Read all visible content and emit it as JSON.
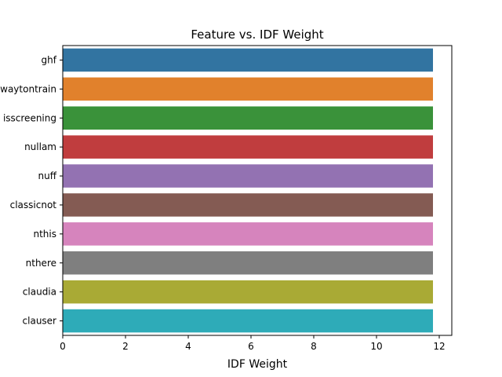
{
  "chart_data": {
    "type": "bar",
    "orientation": "horizontal",
    "title": "Feature vs. IDF Weight",
    "xlabel": "IDF Weight",
    "ylabel": "",
    "xlim": [
      0,
      12.4
    ],
    "xticks": [
      0,
      2,
      4,
      6,
      8,
      10,
      12
    ],
    "grid": false,
    "categories": [
      "ghf",
      "waytontrain",
      "isscreening",
      "nullam",
      "nuff",
      "classicnot",
      "nthis",
      "nthere",
      "claudia",
      "clauser"
    ],
    "values": [
      11.8,
      11.8,
      11.8,
      11.8,
      11.8,
      11.8,
      11.8,
      11.8,
      11.8,
      11.8
    ],
    "colors": [
      "#3274a1",
      "#e1812c",
      "#3a923a",
      "#c03d3e",
      "#9372b2",
      "#845b53",
      "#d684bd",
      "#7f7f7f",
      "#a9aa35",
      "#2eabb8"
    ]
  }
}
